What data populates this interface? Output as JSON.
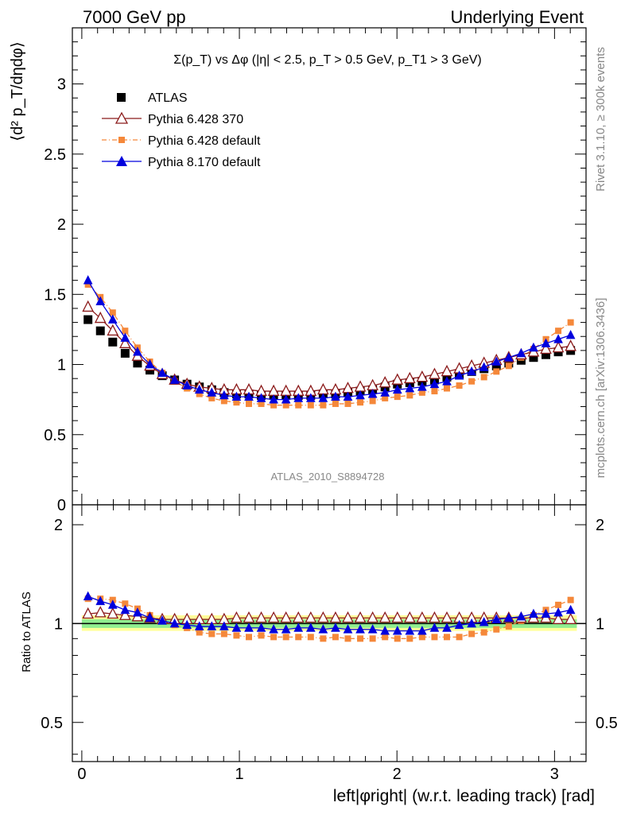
{
  "header": {
    "left": "7000 GeV pp",
    "right": "Underlying Event"
  },
  "plot_title": "Σ(p_T) vs Δφ (|η| < 2.5, p_T > 0.5 GeV, p_T1 > 3 GeV)",
  "side_labels": {
    "rivet": "Rivet 3.1.10, ≥ 300k events",
    "mcplots": "mcplots.cern.ch [arXiv:1306.3436]"
  },
  "analysis_id": "ATLAS_2010_S8894728",
  "colors": {
    "atlas": "#000000",
    "py6_370": "#8b1a1a",
    "py6_default": "#f5883a",
    "py8_default": "#0000dd",
    "band_inner": "#90ee90",
    "band_outer": "#ffff99"
  },
  "chart_data": [
    {
      "type": "scatter",
      "panel": "main",
      "ylabel": "⟨d² p_T/dηdφ⟩",
      "xlim": [
        -0.06,
        3.2
      ],
      "ylim": [
        0,
        3.4
      ],
      "y_ticks": [
        0,
        0.5,
        1,
        1.5,
        2,
        2.5,
        3
      ],
      "x": [
        0.0393,
        0.1178,
        0.1963,
        0.2749,
        0.3534,
        0.432,
        0.5105,
        0.589,
        0.6676,
        0.7461,
        0.8247,
        0.9032,
        0.9817,
        1.0603,
        1.1388,
        1.2174,
        1.2959,
        1.3744,
        1.453,
        1.5315,
        1.6101,
        1.6886,
        1.7671,
        1.8457,
        1.9242,
        2.0028,
        2.0813,
        2.1598,
        2.2384,
        2.3169,
        2.3955,
        2.474,
        2.5525,
        2.6311,
        2.7096,
        2.7882,
        2.8667,
        2.9452,
        3.0238,
        3.1023
      ],
      "series": [
        {
          "name": "ATLAS",
          "marker": "square",
          "values": [
            1.32,
            1.24,
            1.16,
            1.08,
            1.01,
            0.96,
            0.92,
            0.89,
            0.86,
            0.84,
            0.82,
            0.8,
            0.79,
            0.79,
            0.78,
            0.78,
            0.78,
            0.78,
            0.78,
            0.79,
            0.79,
            0.8,
            0.81,
            0.82,
            0.84,
            0.86,
            0.87,
            0.88,
            0.89,
            0.91,
            0.93,
            0.95,
            0.97,
            0.99,
            1.01,
            1.03,
            1.05,
            1.07,
            1.09,
            1.1
          ]
        },
        {
          "name": "Pythia 6.428 370",
          "marker": "open-triangle",
          "values": [
            1.41,
            1.33,
            1.24,
            1.15,
            1.06,
            0.99,
            0.93,
            0.89,
            0.86,
            0.84,
            0.83,
            0.82,
            0.82,
            0.82,
            0.81,
            0.81,
            0.81,
            0.81,
            0.81,
            0.82,
            0.82,
            0.83,
            0.84,
            0.85,
            0.87,
            0.89,
            0.9,
            0.91,
            0.93,
            0.95,
            0.97,
            0.99,
            1.01,
            1.03,
            1.05,
            1.07,
            1.09,
            1.11,
            1.12,
            1.13
          ]
        },
        {
          "name": "Pythia 6.428 default",
          "marker": "small-square",
          "values": [
            1.57,
            1.48,
            1.37,
            1.24,
            1.12,
            1.02,
            0.94,
            0.88,
            0.83,
            0.79,
            0.76,
            0.74,
            0.73,
            0.72,
            0.72,
            0.71,
            0.71,
            0.71,
            0.71,
            0.71,
            0.72,
            0.72,
            0.73,
            0.74,
            0.76,
            0.77,
            0.78,
            0.8,
            0.81,
            0.83,
            0.85,
            0.88,
            0.91,
            0.95,
            0.99,
            1.05,
            1.11,
            1.18,
            1.24,
            1.3
          ]
        },
        {
          "name": "Pythia 8.170 default",
          "marker": "filled-triangle",
          "values": [
            1.6,
            1.45,
            1.32,
            1.19,
            1.09,
            1.0,
            0.94,
            0.89,
            0.85,
            0.82,
            0.8,
            0.78,
            0.77,
            0.77,
            0.76,
            0.75,
            0.75,
            0.76,
            0.76,
            0.76,
            0.77,
            0.77,
            0.78,
            0.79,
            0.8,
            0.82,
            0.83,
            0.84,
            0.86,
            0.88,
            0.92,
            0.95,
            0.98,
            1.02,
            1.05,
            1.08,
            1.12,
            1.15,
            1.18,
            1.21
          ]
        }
      ]
    },
    {
      "type": "scatter",
      "panel": "ratio",
      "ylabel": "Ratio to ATLAS",
      "xlabel": "left|φright| (w.r.t. leading track) [rad]",
      "xlim": [
        -0.06,
        3.2
      ],
      "ylim": [
        0.38,
        2.3
      ],
      "log_y": true,
      "x_ticks": [
        0,
        1,
        2,
        3
      ],
      "y_ticks": [
        0.5,
        1,
        2
      ],
      "band_inner": [
        0.97,
        1.03
      ],
      "band_outer": [
        0.95,
        1.06
      ],
      "series": [
        {
          "name": "Pythia 6.428 370",
          "values": [
            1.07,
            1.08,
            1.07,
            1.06,
            1.05,
            1.04,
            1.03,
            1.03,
            1.03,
            1.03,
            1.03,
            1.03,
            1.04,
            1.04,
            1.04,
            1.04,
            1.04,
            1.04,
            1.04,
            1.04,
            1.04,
            1.04,
            1.04,
            1.04,
            1.04,
            1.04,
            1.04,
            1.04,
            1.04,
            1.04,
            1.04,
            1.04,
            1.04,
            1.04,
            1.04,
            1.04,
            1.04,
            1.04,
            1.03,
            1.03
          ]
        },
        {
          "name": "Pythia 6.428 default",
          "values": [
            1.19,
            1.19,
            1.18,
            1.15,
            1.11,
            1.06,
            1.02,
            0.99,
            0.97,
            0.94,
            0.93,
            0.93,
            0.92,
            0.91,
            0.92,
            0.91,
            0.91,
            0.91,
            0.91,
            0.9,
            0.91,
            0.9,
            0.9,
            0.9,
            0.91,
            0.9,
            0.9,
            0.91,
            0.91,
            0.91,
            0.91,
            0.93,
            0.94,
            0.96,
            0.98,
            1.02,
            1.06,
            1.1,
            1.14,
            1.18
          ]
        },
        {
          "name": "Pythia 8.170 default",
          "values": [
            1.21,
            1.17,
            1.14,
            1.1,
            1.08,
            1.04,
            1.02,
            1.0,
            0.99,
            0.98,
            0.98,
            0.98,
            0.97,
            0.97,
            0.97,
            0.96,
            0.96,
            0.97,
            0.97,
            0.96,
            0.97,
            0.96,
            0.96,
            0.96,
            0.95,
            0.95,
            0.95,
            0.95,
            0.97,
            0.97,
            0.99,
            1.0,
            1.01,
            1.03,
            1.04,
            1.05,
            1.07,
            1.07,
            1.08,
            1.1
          ]
        }
      ]
    }
  ]
}
